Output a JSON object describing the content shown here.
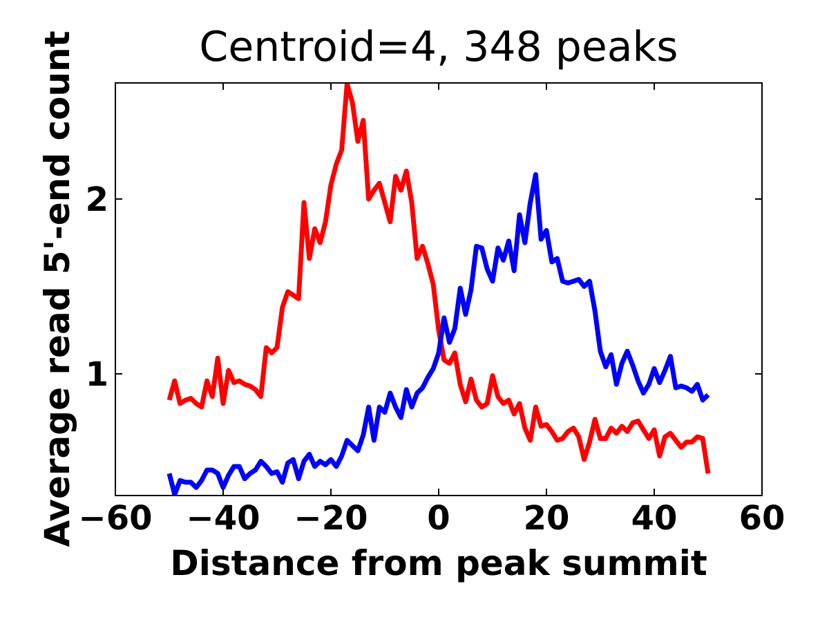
{
  "chart_data": {
    "type": "line",
    "title": "Centroid=4, 348 peaks",
    "x_label": "Distance from peak summit",
    "y_label": "Average read 5'-end count",
    "x": [
      -50,
      -49,
      -48,
      -47,
      -46,
      -45,
      -44,
      -43,
      -42,
      -41,
      -40,
      -39,
      -38,
      -37,
      -36,
      -35,
      -34,
      -33,
      -32,
      -31,
      -30,
      -29,
      -28,
      -27,
      -26,
      -25,
      -24,
      -23,
      -22,
      -21,
      -20,
      -19,
      -18,
      -17,
      -16,
      -15,
      -14,
      -13,
      -12,
      -11,
      -10,
      -9,
      -8,
      -7,
      -6,
      -5,
      -4,
      -3,
      -2,
      -1,
      0,
      1,
      2,
      3,
      4,
      5,
      6,
      7,
      8,
      9,
      10,
      11,
      12,
      13,
      14,
      15,
      16,
      17,
      18,
      19,
      20,
      21,
      22,
      23,
      24,
      25,
      26,
      27,
      28,
      29,
      30,
      31,
      32,
      33,
      34,
      35,
      36,
      37,
      38,
      39,
      40,
      41,
      42,
      43,
      44,
      45,
      46,
      47,
      48,
      49,
      50
    ],
    "series": [
      {
        "color": "#ff0000",
        "values": [
          0.85,
          0.96,
          0.83,
          0.85,
          0.86,
          0.83,
          0.81,
          0.96,
          0.87,
          1.09,
          0.83,
          1.02,
          0.95,
          0.96,
          0.94,
          0.93,
          0.91,
          0.87,
          1.15,
          1.12,
          1.15,
          1.38,
          1.47,
          1.45,
          1.43,
          1.98,
          1.66,
          1.83,
          1.75,
          1.87,
          2.08,
          2.2,
          2.28,
          2.66,
          2.55,
          2.33,
          2.45,
          2.0,
          2.05,
          2.09,
          1.98,
          1.87,
          2.13,
          2.05,
          2.16,
          1.98,
          1.66,
          1.73,
          1.63,
          1.51,
          1.25,
          1.08,
          1.06,
          1.12,
          0.94,
          0.84,
          0.97,
          0.85,
          0.81,
          0.83,
          0.99,
          0.87,
          0.83,
          0.85,
          0.77,
          0.83,
          0.69,
          0.62,
          0.81,
          0.7,
          0.71,
          0.67,
          0.62,
          0.63,
          0.67,
          0.69,
          0.64,
          0.51,
          0.61,
          0.74,
          0.63,
          0.63,
          0.69,
          0.66,
          0.7,
          0.67,
          0.72,
          0.73,
          0.68,
          0.63,
          0.68,
          0.53,
          0.64,
          0.66,
          0.62,
          0.58,
          0.61,
          0.61,
          0.64,
          0.63,
          0.43
        ]
      },
      {
        "color": "#0000ff",
        "values": [
          0.43,
          0.31,
          0.39,
          0.38,
          0.38,
          0.35,
          0.39,
          0.45,
          0.45,
          0.43,
          0.35,
          0.42,
          0.47,
          0.47,
          0.4,
          0.43,
          0.45,
          0.5,
          0.47,
          0.43,
          0.44,
          0.38,
          0.49,
          0.51,
          0.4,
          0.5,
          0.54,
          0.47,
          0.5,
          0.48,
          0.51,
          0.47,
          0.53,
          0.62,
          0.59,
          0.56,
          0.65,
          0.81,
          0.62,
          0.81,
          0.78,
          0.89,
          0.81,
          0.75,
          0.91,
          0.81,
          0.89,
          0.92,
          0.98,
          1.03,
          1.12,
          1.32,
          1.18,
          1.26,
          1.49,
          1.34,
          1.48,
          1.73,
          1.72,
          1.6,
          1.53,
          1.72,
          1.65,
          1.76,
          1.59,
          1.91,
          1.75,
          1.98,
          2.14,
          1.77,
          1.82,
          1.64,
          1.66,
          1.53,
          1.52,
          1.53,
          1.54,
          1.5,
          1.53,
          1.36,
          1.13,
          1.04,
          1.11,
          0.94,
          1.06,
          1.13,
          1.05,
          0.96,
          0.89,
          0.94,
          1.03,
          0.95,
          1.02,
          1.1,
          0.92,
          0.93,
          0.92,
          0.9,
          0.94,
          0.85,
          0.88
        ]
      }
    ],
    "xlim": [
      -60,
      60
    ],
    "xticks": [
      -60,
      -40,
      -20,
      0,
      20,
      40,
      60
    ],
    "ylim": [
      0.304,
      2.664
    ],
    "yticks": [
      1,
      2
    ]
  }
}
